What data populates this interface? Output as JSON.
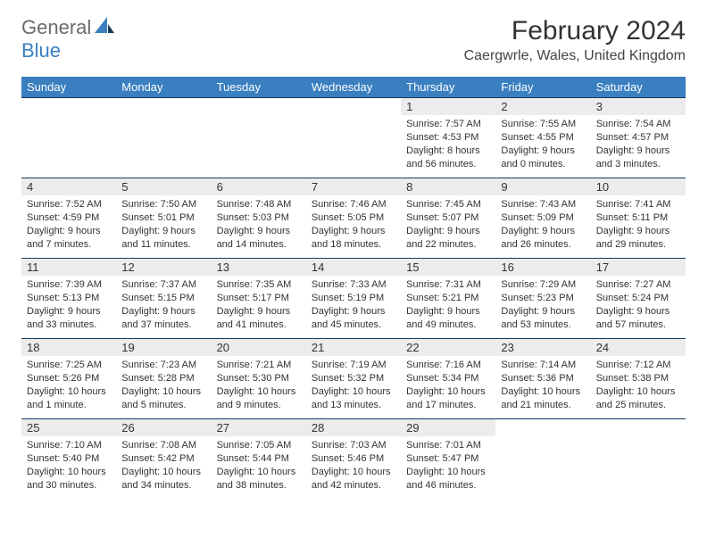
{
  "logo": {
    "general": "General",
    "blue": "Blue"
  },
  "title": "February 2024",
  "location": "Caergwrle, Wales, United Kingdom",
  "colors": {
    "header_bg": "#3a7fc0",
    "header_text": "#ffffff",
    "daynum_bg": "#ececec",
    "border": "#163a5f",
    "logo_gray": "#6b6b6b",
    "logo_blue": "#3a7fc0",
    "background": "#ffffff",
    "text": "#333333"
  },
  "typography": {
    "title_fontsize": 30,
    "location_fontsize": 16,
    "header_fontsize": 13,
    "daynum_fontsize": 13,
    "info_fontsize": 11
  },
  "weekdays": [
    "Sunday",
    "Monday",
    "Tuesday",
    "Wednesday",
    "Thursday",
    "Friday",
    "Saturday"
  ],
  "weeks": [
    [
      null,
      null,
      null,
      null,
      {
        "n": "1",
        "sr": "Sunrise: 7:57 AM",
        "ss": "Sunset: 4:53 PM",
        "dl1": "Daylight: 8 hours",
        "dl2": "and 56 minutes."
      },
      {
        "n": "2",
        "sr": "Sunrise: 7:55 AM",
        "ss": "Sunset: 4:55 PM",
        "dl1": "Daylight: 9 hours",
        "dl2": "and 0 minutes."
      },
      {
        "n": "3",
        "sr": "Sunrise: 7:54 AM",
        "ss": "Sunset: 4:57 PM",
        "dl1": "Daylight: 9 hours",
        "dl2": "and 3 minutes."
      }
    ],
    [
      {
        "n": "4",
        "sr": "Sunrise: 7:52 AM",
        "ss": "Sunset: 4:59 PM",
        "dl1": "Daylight: 9 hours",
        "dl2": "and 7 minutes."
      },
      {
        "n": "5",
        "sr": "Sunrise: 7:50 AM",
        "ss": "Sunset: 5:01 PM",
        "dl1": "Daylight: 9 hours",
        "dl2": "and 11 minutes."
      },
      {
        "n": "6",
        "sr": "Sunrise: 7:48 AM",
        "ss": "Sunset: 5:03 PM",
        "dl1": "Daylight: 9 hours",
        "dl2": "and 14 minutes."
      },
      {
        "n": "7",
        "sr": "Sunrise: 7:46 AM",
        "ss": "Sunset: 5:05 PM",
        "dl1": "Daylight: 9 hours",
        "dl2": "and 18 minutes."
      },
      {
        "n": "8",
        "sr": "Sunrise: 7:45 AM",
        "ss": "Sunset: 5:07 PM",
        "dl1": "Daylight: 9 hours",
        "dl2": "and 22 minutes."
      },
      {
        "n": "9",
        "sr": "Sunrise: 7:43 AM",
        "ss": "Sunset: 5:09 PM",
        "dl1": "Daylight: 9 hours",
        "dl2": "and 26 minutes."
      },
      {
        "n": "10",
        "sr": "Sunrise: 7:41 AM",
        "ss": "Sunset: 5:11 PM",
        "dl1": "Daylight: 9 hours",
        "dl2": "and 29 minutes."
      }
    ],
    [
      {
        "n": "11",
        "sr": "Sunrise: 7:39 AM",
        "ss": "Sunset: 5:13 PM",
        "dl1": "Daylight: 9 hours",
        "dl2": "and 33 minutes."
      },
      {
        "n": "12",
        "sr": "Sunrise: 7:37 AM",
        "ss": "Sunset: 5:15 PM",
        "dl1": "Daylight: 9 hours",
        "dl2": "and 37 minutes."
      },
      {
        "n": "13",
        "sr": "Sunrise: 7:35 AM",
        "ss": "Sunset: 5:17 PM",
        "dl1": "Daylight: 9 hours",
        "dl2": "and 41 minutes."
      },
      {
        "n": "14",
        "sr": "Sunrise: 7:33 AM",
        "ss": "Sunset: 5:19 PM",
        "dl1": "Daylight: 9 hours",
        "dl2": "and 45 minutes."
      },
      {
        "n": "15",
        "sr": "Sunrise: 7:31 AM",
        "ss": "Sunset: 5:21 PM",
        "dl1": "Daylight: 9 hours",
        "dl2": "and 49 minutes."
      },
      {
        "n": "16",
        "sr": "Sunrise: 7:29 AM",
        "ss": "Sunset: 5:23 PM",
        "dl1": "Daylight: 9 hours",
        "dl2": "and 53 minutes."
      },
      {
        "n": "17",
        "sr": "Sunrise: 7:27 AM",
        "ss": "Sunset: 5:24 PM",
        "dl1": "Daylight: 9 hours",
        "dl2": "and 57 minutes."
      }
    ],
    [
      {
        "n": "18",
        "sr": "Sunrise: 7:25 AM",
        "ss": "Sunset: 5:26 PM",
        "dl1": "Daylight: 10 hours",
        "dl2": "and 1 minute."
      },
      {
        "n": "19",
        "sr": "Sunrise: 7:23 AM",
        "ss": "Sunset: 5:28 PM",
        "dl1": "Daylight: 10 hours",
        "dl2": "and 5 minutes."
      },
      {
        "n": "20",
        "sr": "Sunrise: 7:21 AM",
        "ss": "Sunset: 5:30 PM",
        "dl1": "Daylight: 10 hours",
        "dl2": "and 9 minutes."
      },
      {
        "n": "21",
        "sr": "Sunrise: 7:19 AM",
        "ss": "Sunset: 5:32 PM",
        "dl1": "Daylight: 10 hours",
        "dl2": "and 13 minutes."
      },
      {
        "n": "22",
        "sr": "Sunrise: 7:16 AM",
        "ss": "Sunset: 5:34 PM",
        "dl1": "Daylight: 10 hours",
        "dl2": "and 17 minutes."
      },
      {
        "n": "23",
        "sr": "Sunrise: 7:14 AM",
        "ss": "Sunset: 5:36 PM",
        "dl1": "Daylight: 10 hours",
        "dl2": "and 21 minutes."
      },
      {
        "n": "24",
        "sr": "Sunrise: 7:12 AM",
        "ss": "Sunset: 5:38 PM",
        "dl1": "Daylight: 10 hours",
        "dl2": "and 25 minutes."
      }
    ],
    [
      {
        "n": "25",
        "sr": "Sunrise: 7:10 AM",
        "ss": "Sunset: 5:40 PM",
        "dl1": "Daylight: 10 hours",
        "dl2": "and 30 minutes."
      },
      {
        "n": "26",
        "sr": "Sunrise: 7:08 AM",
        "ss": "Sunset: 5:42 PM",
        "dl1": "Daylight: 10 hours",
        "dl2": "and 34 minutes."
      },
      {
        "n": "27",
        "sr": "Sunrise: 7:05 AM",
        "ss": "Sunset: 5:44 PM",
        "dl1": "Daylight: 10 hours",
        "dl2": "and 38 minutes."
      },
      {
        "n": "28",
        "sr": "Sunrise: 7:03 AM",
        "ss": "Sunset: 5:46 PM",
        "dl1": "Daylight: 10 hours",
        "dl2": "and 42 minutes."
      },
      {
        "n": "29",
        "sr": "Sunrise: 7:01 AM",
        "ss": "Sunset: 5:47 PM",
        "dl1": "Daylight: 10 hours",
        "dl2": "and 46 minutes."
      },
      null,
      null
    ]
  ]
}
